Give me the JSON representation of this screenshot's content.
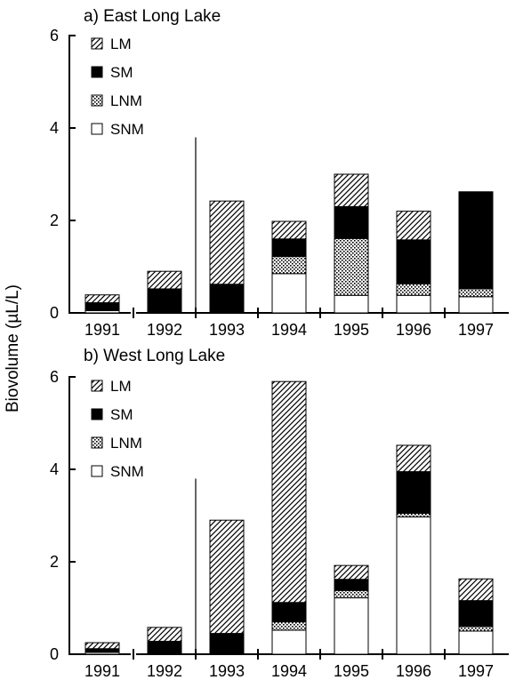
{
  "ylabel": "Biovolume (µL/L)",
  "legend_keys": [
    "LM",
    "SM",
    "LNM",
    "SNM"
  ],
  "colors": {
    "LM": "hatch",
    "SM": "#000000",
    "LNM": "dots",
    "SNM": "#ffffff"
  },
  "chart_data": [
    {
      "type": "bar",
      "stacked": true,
      "title": "a) East Long Lake",
      "categories": [
        "1991",
        "1992",
        "1993",
        "1994",
        "1995",
        "1996",
        "1997"
      ],
      "ylim": [
        0,
        6
      ],
      "yticks": [
        "0",
        "2",
        "4",
        "6"
      ],
      "legend": "top-left",
      "grid": false,
      "marker_line_after": "1992",
      "series": [
        {
          "name": "SNM",
          "values": [
            0.05,
            0.0,
            0.0,
            0.85,
            0.38,
            0.38,
            0.35
          ]
        },
        {
          "name": "LNM",
          "values": [
            0.0,
            0.0,
            0.0,
            0.37,
            1.23,
            0.25,
            0.17
          ]
        },
        {
          "name": "SM",
          "values": [
            0.17,
            0.52,
            0.62,
            0.38,
            0.69,
            0.95,
            2.1
          ]
        },
        {
          "name": "LM",
          "values": [
            0.17,
            0.38,
            1.8,
            0.38,
            0.7,
            0.62,
            0.0
          ]
        }
      ]
    },
    {
      "type": "bar",
      "stacked": true,
      "title": "b) West Long Lake",
      "categories": [
        "1991",
        "1992",
        "1993",
        "1994",
        "1995",
        "1996",
        "1997"
      ],
      "ylim": [
        0,
        6
      ],
      "yticks": [
        "0",
        "2",
        "4",
        "6"
      ],
      "legend": "top-left",
      "grid": false,
      "marker_line_after": "1992",
      "series": [
        {
          "name": "SNM",
          "values": [
            0.04,
            0.0,
            0.0,
            0.52,
            1.22,
            2.97,
            0.5
          ]
        },
        {
          "name": "LNM",
          "values": [
            0.0,
            0.0,
            0.0,
            0.18,
            0.16,
            0.08,
            0.1
          ]
        },
        {
          "name": "SM",
          "values": [
            0.08,
            0.28,
            0.45,
            0.42,
            0.24,
            0.9,
            0.56
          ]
        },
        {
          "name": "LM",
          "values": [
            0.13,
            0.3,
            2.45,
            4.78,
            0.3,
            0.57,
            0.47
          ]
        }
      ]
    }
  ]
}
